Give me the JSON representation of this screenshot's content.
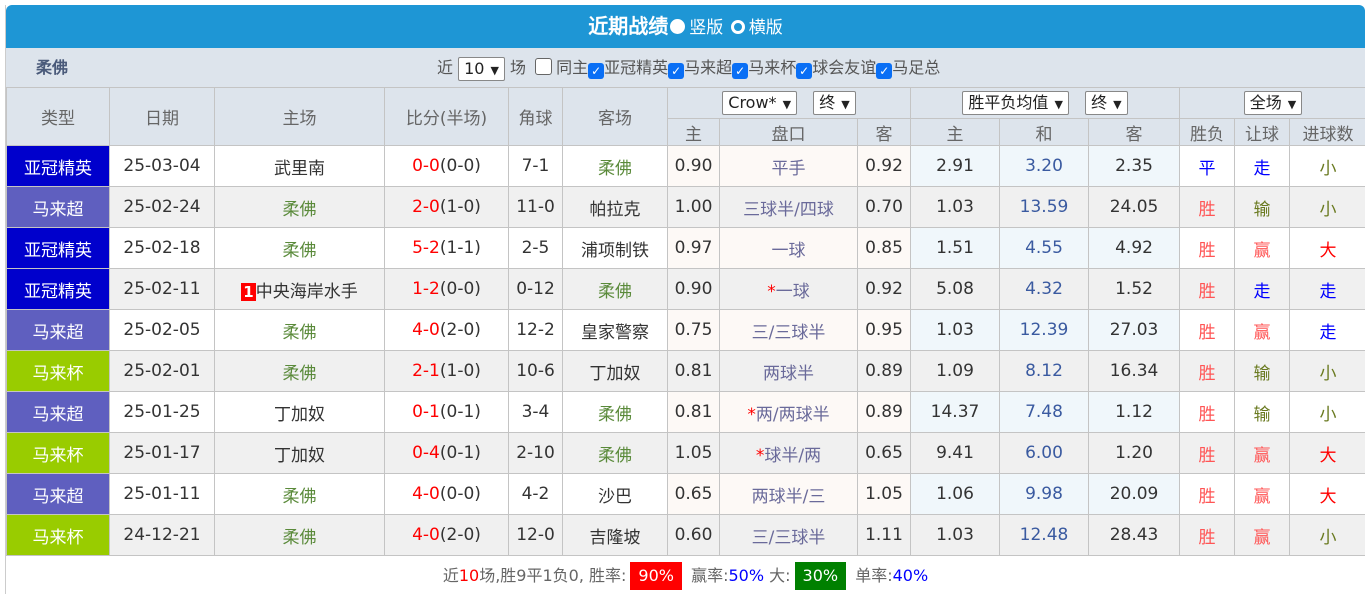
{
  "title": "近期战绩",
  "layout_options": [
    {
      "label": "竖版",
      "selected": true
    },
    {
      "label": "横版",
      "selected": false
    }
  ],
  "team": "柔佛",
  "filter": {
    "prefix": "近",
    "count": "10",
    "suffix": "场",
    "same_home": {
      "label": "同主",
      "checked": false
    },
    "leagues": [
      {
        "label": "亚冠精英",
        "checked": true
      },
      {
        "label": "马来超",
        "checked": true
      },
      {
        "label": "马来杯",
        "checked": true
      },
      {
        "label": "球会友谊",
        "checked": true
      },
      {
        "label": "马足总",
        "checked": true
      }
    ]
  },
  "headers": {
    "type": "类型",
    "date": "日期",
    "home": "主场",
    "score": "比分(半场)",
    "corners": "角球",
    "away": "客场",
    "bookmaker": "Crow*",
    "odds_stage1": "终",
    "euro_type": "胜平负均值",
    "odds_stage2": "终",
    "period": "全场",
    "sub": [
      "主",
      "盘口",
      "客",
      "主",
      "和",
      "客",
      "胜负",
      "让球",
      "进球数"
    ]
  },
  "colors": {
    "亚冠精英": "#0000cc",
    "马来超": "#5f5fbf",
    "马来杯": "#99cc00",
    "header_bg": "#1e96d5"
  },
  "rows": [
    {
      "type": "亚冠精英",
      "date": "25-03-04",
      "home": "武里南",
      "home_rank": "",
      "score": "0-0",
      "half": "(0-0)",
      "corners": "7-1",
      "away": "柔佛",
      "h_home": "0.90",
      "handicap_star": "",
      "handicap": "平手",
      "h_away": "0.92",
      "w": "2.91",
      "d": "3.20",
      "l": "2.35",
      "result": "平",
      "ah": "走",
      "ou": "小"
    },
    {
      "type": "马来超",
      "date": "25-02-24",
      "home": "柔佛",
      "home_rank": "",
      "score": "2-0",
      "half": "(1-0)",
      "corners": "11-0",
      "away": "帕拉克",
      "h_home": "1.00",
      "handicap_star": "",
      "handicap": "三球半/四球",
      "h_away": "0.70",
      "w": "1.03",
      "d": "13.59",
      "l": "24.05",
      "result": "胜",
      "ah": "输",
      "ou": "小"
    },
    {
      "type": "亚冠精英",
      "date": "25-02-18",
      "home": "柔佛",
      "home_rank": "",
      "score": "5-2",
      "half": "(1-1)",
      "corners": "2-5",
      "away": "浦项制铁",
      "h_home": "0.97",
      "handicap_star": "",
      "handicap": "一球",
      "h_away": "0.85",
      "w": "1.51",
      "d": "4.55",
      "l": "4.92",
      "result": "胜",
      "ah": "赢",
      "ou": "大"
    },
    {
      "type": "亚冠精英",
      "date": "25-02-11",
      "home": "中央海岸水手",
      "home_rank": "1",
      "score": "1-2",
      "half": "(0-0)",
      "corners": "0-12",
      "away": "柔佛",
      "h_home": "0.90",
      "handicap_star": "*",
      "handicap": "一球",
      "h_away": "0.92",
      "w": "5.08",
      "d": "4.32",
      "l": "1.52",
      "result": "胜",
      "ah": "走",
      "ou": "走"
    },
    {
      "type": "马来超",
      "date": "25-02-05",
      "home": "柔佛",
      "home_rank": "",
      "score": "4-0",
      "half": "(2-0)",
      "corners": "12-2",
      "away": "皇家警察",
      "h_home": "0.75",
      "handicap_star": "",
      "handicap": "三/三球半",
      "h_away": "0.95",
      "w": "1.03",
      "d": "12.39",
      "l": "27.03",
      "result": "胜",
      "ah": "赢",
      "ou": "走"
    },
    {
      "type": "马来杯",
      "date": "25-02-01",
      "home": "柔佛",
      "home_rank": "",
      "score": "2-1",
      "half": "(1-0)",
      "corners": "10-6",
      "away": "丁加奴",
      "h_home": "0.81",
      "handicap_star": "",
      "handicap": "两球半",
      "h_away": "0.89",
      "w": "1.09",
      "d": "8.12",
      "l": "16.34",
      "result": "胜",
      "ah": "输",
      "ou": "小"
    },
    {
      "type": "马来超",
      "date": "25-01-25",
      "home": "丁加奴",
      "home_rank": "",
      "score": "0-1",
      "half": "(0-1)",
      "corners": "3-4",
      "away": "柔佛",
      "h_home": "0.81",
      "handicap_star": "*",
      "handicap": "两/两球半",
      "h_away": "0.89",
      "w": "14.37",
      "d": "7.48",
      "l": "1.12",
      "result": "胜",
      "ah": "输",
      "ou": "小"
    },
    {
      "type": "马来杯",
      "date": "25-01-17",
      "home": "丁加奴",
      "home_rank": "",
      "score": "0-4",
      "half": "(0-1)",
      "corners": "2-10",
      "away": "柔佛",
      "h_home": "1.05",
      "handicap_star": "*",
      "handicap": "球半/两",
      "h_away": "0.65",
      "w": "9.41",
      "d": "6.00",
      "l": "1.20",
      "result": "胜",
      "ah": "赢",
      "ou": "大"
    },
    {
      "type": "马来超",
      "date": "25-01-11",
      "home": "柔佛",
      "home_rank": "",
      "score": "4-0",
      "half": "(0-0)",
      "corners": "4-2",
      "away": "沙巴",
      "h_home": "0.65",
      "handicap_star": "",
      "handicap": "两球半/三",
      "h_away": "1.05",
      "w": "1.06",
      "d": "9.98",
      "l": "20.09",
      "result": "胜",
      "ah": "赢",
      "ou": "大"
    },
    {
      "type": "马来杯",
      "date": "24-12-21",
      "home": "柔佛",
      "home_rank": "",
      "score": "4-0",
      "half": "(2-0)",
      "corners": "12-0",
      "away": "吉隆坡",
      "h_home": "0.60",
      "handicap_star": "",
      "handicap": "三/三球半",
      "h_away": "1.11",
      "w": "1.03",
      "d": "12.48",
      "l": "28.43",
      "result": "胜",
      "ah": "赢",
      "ou": "小"
    }
  ],
  "summary": {
    "p1": "近",
    "games": "10",
    "p2": "场,胜9平1负0, 胜率:",
    "win_rate": "90%",
    "p3": "赢率:",
    "ah_rate": "50%",
    "p4": "大:",
    "over_rate": "30%",
    "p5": "单率:",
    "odd_rate": "40%"
  }
}
